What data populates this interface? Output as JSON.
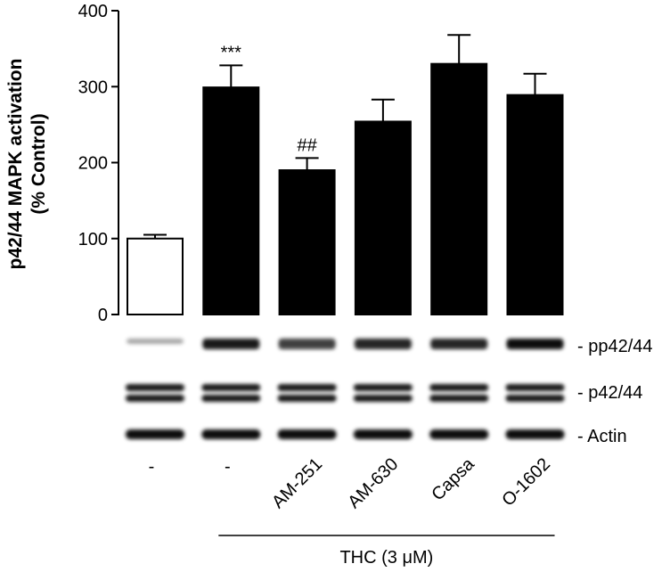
{
  "chart_data": {
    "type": "bar",
    "ylabel": [
      "p42/44 MAPK activation",
      "(% Control)"
    ],
    "categories": [
      "-",
      "-",
      "AM-251",
      "AM-630",
      "Capsa",
      "O-1602"
    ],
    "values": [
      100,
      299,
      190,
      254,
      330,
      289
    ],
    "errors": [
      5,
      29,
      16,
      29,
      38,
      28
    ],
    "colors": [
      "#ffffff",
      "#000000",
      "#000000",
      "#000000",
      "#000000",
      "#000000"
    ],
    "significance": [
      null,
      "***",
      "##",
      null,
      null,
      null
    ],
    "ylim": [
      0,
      400
    ],
    "yticks": [
      0,
      100,
      200,
      300,
      400
    ],
    "blot_labels": [
      "- pp42/44",
      "- p42/44",
      "- Actin"
    ],
    "group_label": "THC (3 μM)"
  }
}
